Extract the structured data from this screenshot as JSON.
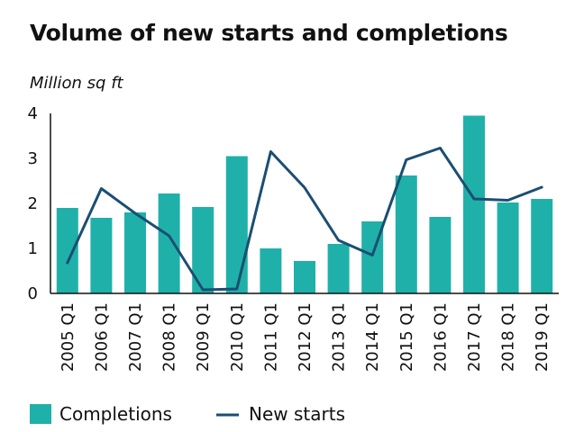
{
  "chart_data": {
    "type": "bar",
    "title": "Volume of new starts and completions",
    "ylabel": "Million sq ft",
    "xlabel": "",
    "ylim": [
      0,
      4
    ],
    "yticks": [
      "0",
      "1",
      "2",
      "3",
      "4"
    ],
    "grid": false,
    "legend_position": "bottom",
    "categories": [
      "2005 Q1",
      "2006 Q1",
      "2007 Q1",
      "2008 Q1",
      "2009 Q1",
      "2010 Q1",
      "2011 Q1",
      "2012 Q1",
      "2013 Q1",
      "2014 Q1",
      "2015 Q1",
      "2016 Q1",
      "2017 Q1",
      "2018 Q1",
      "2019 Q1"
    ],
    "series": [
      {
        "name": "Completions",
        "type": "bar",
        "color": "#1fb1a9",
        "values": [
          1.9,
          1.68,
          1.8,
          2.22,
          1.92,
          3.05,
          1.0,
          0.72,
          1.1,
          1.6,
          2.62,
          1.7,
          3.95,
          2.02,
          2.1
        ]
      },
      {
        "name": "New starts",
        "type": "line",
        "color": "#1b4e72",
        "values": [
          0.68,
          2.33,
          1.78,
          1.28,
          0.08,
          0.1,
          3.15,
          2.35,
          1.18,
          0.85,
          2.97,
          3.23,
          2.1,
          2.07,
          2.36
        ]
      }
    ]
  }
}
